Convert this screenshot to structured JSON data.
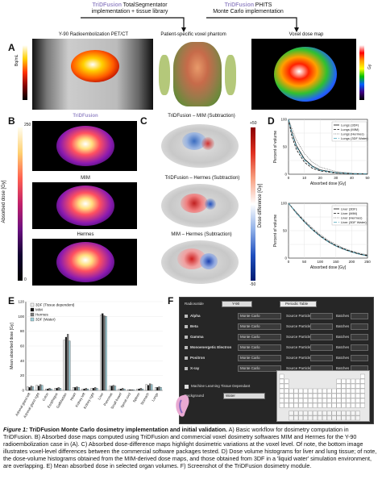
{
  "header": {
    "left_title": "TriDFusion",
    "left_title_suffix": "TotalSegmentator",
    "left_sub": "implementation + tissue library",
    "right_title": "TriDFusion",
    "right_title_suffix": "PHITS",
    "right_sub": "Monte Carlo implementation"
  },
  "panel_a": {
    "letter": "A",
    "left_label": "Y-90 Radioembolization PET/CT",
    "mid_label": "Patient-specific voxel phantom",
    "right_label": "Voxel dose map",
    "cbar_left": "Bq/mL",
    "cbar_right": "Gy"
  },
  "panel_b": {
    "letter": "B",
    "titles": [
      "TriDFusion",
      "MIM",
      "Hermes"
    ],
    "cbar_label": "Absorbed dose [Gy]",
    "cbar_max": "250",
    "cbar_min": "0"
  },
  "panel_c": {
    "letter": "C",
    "titles": [
      "TriDFusion – MIM (Subtraction)",
      "TriDFusion – Hermes (Subtraction)",
      "MIM – Hermes (Subtraction)"
    ],
    "cbar_label": "Dose difference [Gy]",
    "cbar_max": "+50",
    "cbar_min": "-50"
  },
  "panel_d": {
    "letter": "D",
    "lung_legend": [
      "Lungs (3DF)",
      "Lungs (MIM)",
      "Lungs (Hermes)",
      "Lungs (3DF Water)"
    ],
    "liver_legend": [
      "Liver (3DF)",
      "Liver (MIM)",
      "Liver (Hermes)",
      "Liver (3DF Water)"
    ],
    "ylabel": "Percent of volume",
    "xlabel_top": "Absorbed dose [Gy]",
    "xlabel_bottom": "Absorbed dose [Gy]",
    "top_xticks": [
      "0",
      "10",
      "20",
      "30",
      "40",
      "50"
    ],
    "bottom_xticks": [
      "0",
      "50",
      "100",
      "150",
      "200",
      "250"
    ],
    "yticks": [
      "0",
      "50",
      "100"
    ]
  },
  "panel_e": {
    "letter": "E",
    "ylabel": "Mean absorbed dose [Gy]",
    "yticks": [
      "0",
      "20",
      "40",
      "60",
      "80",
      "100",
      "120"
    ]
  },
  "panel_f": {
    "letter": "F",
    "title_left": "Radiosotide",
    "title_value": "Y-90",
    "title_button": "Periodic Table",
    "rows": [
      {
        "name": "Alpha",
        "method": "Monte Carlo"
      },
      {
        "name": "Beta",
        "method": "Monte Carlo"
      },
      {
        "name": "Gamma",
        "method": "Monte Carlo"
      },
      {
        "name": "Monoenergetic Electron",
        "method": "Monte Carlo"
      },
      {
        "name": "Positron",
        "method": "Monte Carlo"
      },
      {
        "name": "X-ray",
        "method": "Monte Carlo"
      }
    ],
    "source_label": "Source Particles",
    "batches_label": "Batches",
    "checkbox_label": "Machine Learning Tissue Dependant",
    "background_label": "Background",
    "background_value": "Water"
  },
  "chart_data": [
    {
      "type": "line",
      "title": "",
      "xlabel": "Absorbed dose [Gy]",
      "ylabel": "Percent of volume",
      "xlim": [
        0,
        50
      ],
      "ylim": [
        0,
        100
      ],
      "x": [
        0,
        2,
        5,
        10,
        15,
        20,
        30,
        40,
        50
      ],
      "series": [
        {
          "name": "Lungs (3DF)",
          "values": [
            100,
            78,
            52,
            28,
            15,
            8,
            3,
            1,
            0.5
          ]
        },
        {
          "name": "Lungs (MIM)",
          "values": [
            100,
            70,
            45,
            22,
            11,
            6,
            2,
            1,
            0.5
          ]
        },
        {
          "name": "Lungs (Hermes)",
          "values": [
            100,
            85,
            62,
            38,
            22,
            13,
            5,
            2,
            1
          ]
        },
        {
          "name": "Lungs (3DF Water)",
          "values": [
            100,
            76,
            50,
            26,
            14,
            7,
            3,
            1,
            0.5
          ]
        }
      ]
    },
    {
      "type": "line",
      "title": "",
      "xlabel": "Absorbed dose [Gy]",
      "ylabel": "Percent of volume",
      "xlim": [
        0,
        250
      ],
      "ylim": [
        0,
        100
      ],
      "x": [
        0,
        25,
        50,
        75,
        100,
        125,
        150,
        175,
        200,
        225,
        250
      ],
      "series": [
        {
          "name": "Liver (3DF)",
          "values": [
            100,
            82,
            66,
            52,
            40,
            30,
            22,
            16,
            11,
            7,
            4
          ]
        },
        {
          "name": "Liver (MIM)",
          "values": [
            100,
            83,
            67,
            53,
            41,
            31,
            23,
            17,
            12,
            8,
            5
          ]
        },
        {
          "name": "Liver (Hermes)",
          "values": [
            100,
            84,
            69,
            55,
            43,
            33,
            25,
            18,
            13,
            9,
            6
          ]
        },
        {
          "name": "Liver (3DF Water)",
          "values": [
            100,
            82,
            66,
            52,
            40,
            30,
            22,
            16,
            11,
            7,
            4
          ]
        }
      ]
    },
    {
      "type": "bar",
      "title": "",
      "xlabel": "",
      "ylabel": "Mean absorbed dose [Gy]",
      "ylim": [
        0,
        120
      ],
      "categories": [
        "Adrenal gland left",
        "Adrenal gland right",
        "Colon",
        "Esophagus",
        "Gallbladder",
        "Heart",
        "Kidney left",
        "Kidney right",
        "Liver",
        "Pancreas",
        "Small bowel",
        "Spinal cord",
        "Spleen",
        "Stomach",
        "Lungs"
      ],
      "series": [
        {
          "name": "3DF (Tissue dependent)",
          "values": [
            5,
            7,
            2,
            3,
            68,
            4,
            2,
            3,
            102,
            6,
            2,
            1,
            2,
            8,
            4
          ]
        },
        {
          "name": "MIM",
          "values": [
            4,
            6,
            2,
            3,
            72,
            4,
            2,
            3,
            104,
            6,
            2,
            1,
            2,
            7,
            4
          ]
        },
        {
          "name": "Hermes",
          "values": [
            6,
            8,
            3,
            4,
            76,
            5,
            3,
            4,
            101,
            7,
            3,
            1,
            3,
            9,
            5
          ]
        },
        {
          "name": "3DF (Water)",
          "values": [
            5,
            7,
            2,
            3,
            67,
            4,
            2,
            3,
            100,
            6,
            2,
            1,
            2,
            8,
            4
          ]
        }
      ]
    }
  ],
  "caption": {
    "lead": "Figure 1:",
    "title": "TriDFusion Monte Carlo dosimetry implementation and initial validation.",
    "body": "A) Basic workflow for dosimetry computation in TriDFusion. B) Absorbed dose maps computed using TriDFusion and commercial voxel dosimetry softwares MIM and Hermes for the Y-90 radioembolization case in (A). C) Absorbed dose-difference maps highlight dosimetric variations at the voxel level. Of note, the bottom image illustrates voxel-level differences between the commercial software packages tested. D) Dose volume histograms for liver and lung tissue; of note, the dose-volume histograms obtained from the MIM-derived dose maps, and those obtained from 3DF in a 'liquid water' simulation environment, are overlapping. E) Mean absorbed dose in selected organ volumes. F) Screenshot of the TriDFusion dosimetry module."
  },
  "colors": {
    "tridfusion": "#9b8ec9",
    "tridfusion_pink": "#d9a6c8",
    "hot": "#ff6a00"
  }
}
